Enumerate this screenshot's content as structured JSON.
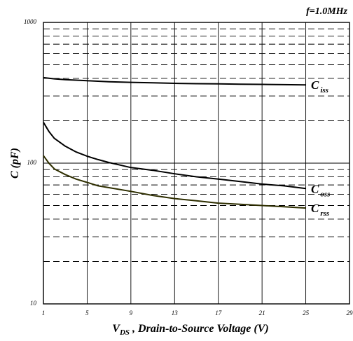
{
  "chart_data": {
    "type": "line",
    "title": "",
    "annotation": "f=1.0MHz",
    "xlabel": "V_DS , Drain-to-Source Voltage (V)",
    "xlabel_main": "V",
    "xlabel_sub": "DS",
    "xlabel_rest": " , Drain-to-Source Voltage (V)",
    "ylabel": "C (pF)",
    "x_scale": "linear",
    "y_scale": "log",
    "xlim": [
      1,
      29
    ],
    "ylim": [
      10,
      1000
    ],
    "x_ticks": [
      "1",
      "5",
      "9",
      "13",
      "17",
      "21",
      "25",
      "29"
    ],
    "y_ticks": [
      "10",
      "100",
      "1000"
    ],
    "grid": true,
    "series": [
      {
        "name": "C iss",
        "label_main": "C",
        "label_sub": "iss",
        "color": "#000000",
        "x": [
          1,
          2,
          3,
          5,
          7,
          9,
          11,
          13,
          15,
          17,
          19,
          21,
          23,
          25
        ],
        "y": [
          405,
          397,
          392,
          385,
          379,
          375,
          372,
          369,
          367,
          366,
          364,
          363,
          361,
          360
        ]
      },
      {
        "name": "C oss",
        "label_main": "C",
        "label_sub": "oss",
        "color": "#000000",
        "x": [
          1,
          1.5,
          2,
          3,
          4,
          5,
          6,
          7,
          8,
          9,
          11,
          13,
          15,
          17,
          19,
          21,
          23,
          25
        ],
        "y": [
          195,
          168,
          150,
          132,
          120,
          112,
          106,
          101,
          97,
          93,
          89,
          84,
          80,
          77,
          74,
          71,
          69,
          66
        ]
      },
      {
        "name": "C rss",
        "label_main": "C",
        "label_sub": "rss",
        "color": "#2e2e00",
        "x": [
          1,
          1.5,
          2,
          3,
          4,
          5,
          6,
          7,
          9,
          11,
          13,
          15,
          17,
          19,
          21,
          23,
          25
        ],
        "y": [
          113,
          100,
          91,
          83,
          77,
          73,
          69,
          67,
          63,
          59,
          56,
          54,
          52,
          51,
          50,
          49,
          48
        ]
      }
    ]
  }
}
